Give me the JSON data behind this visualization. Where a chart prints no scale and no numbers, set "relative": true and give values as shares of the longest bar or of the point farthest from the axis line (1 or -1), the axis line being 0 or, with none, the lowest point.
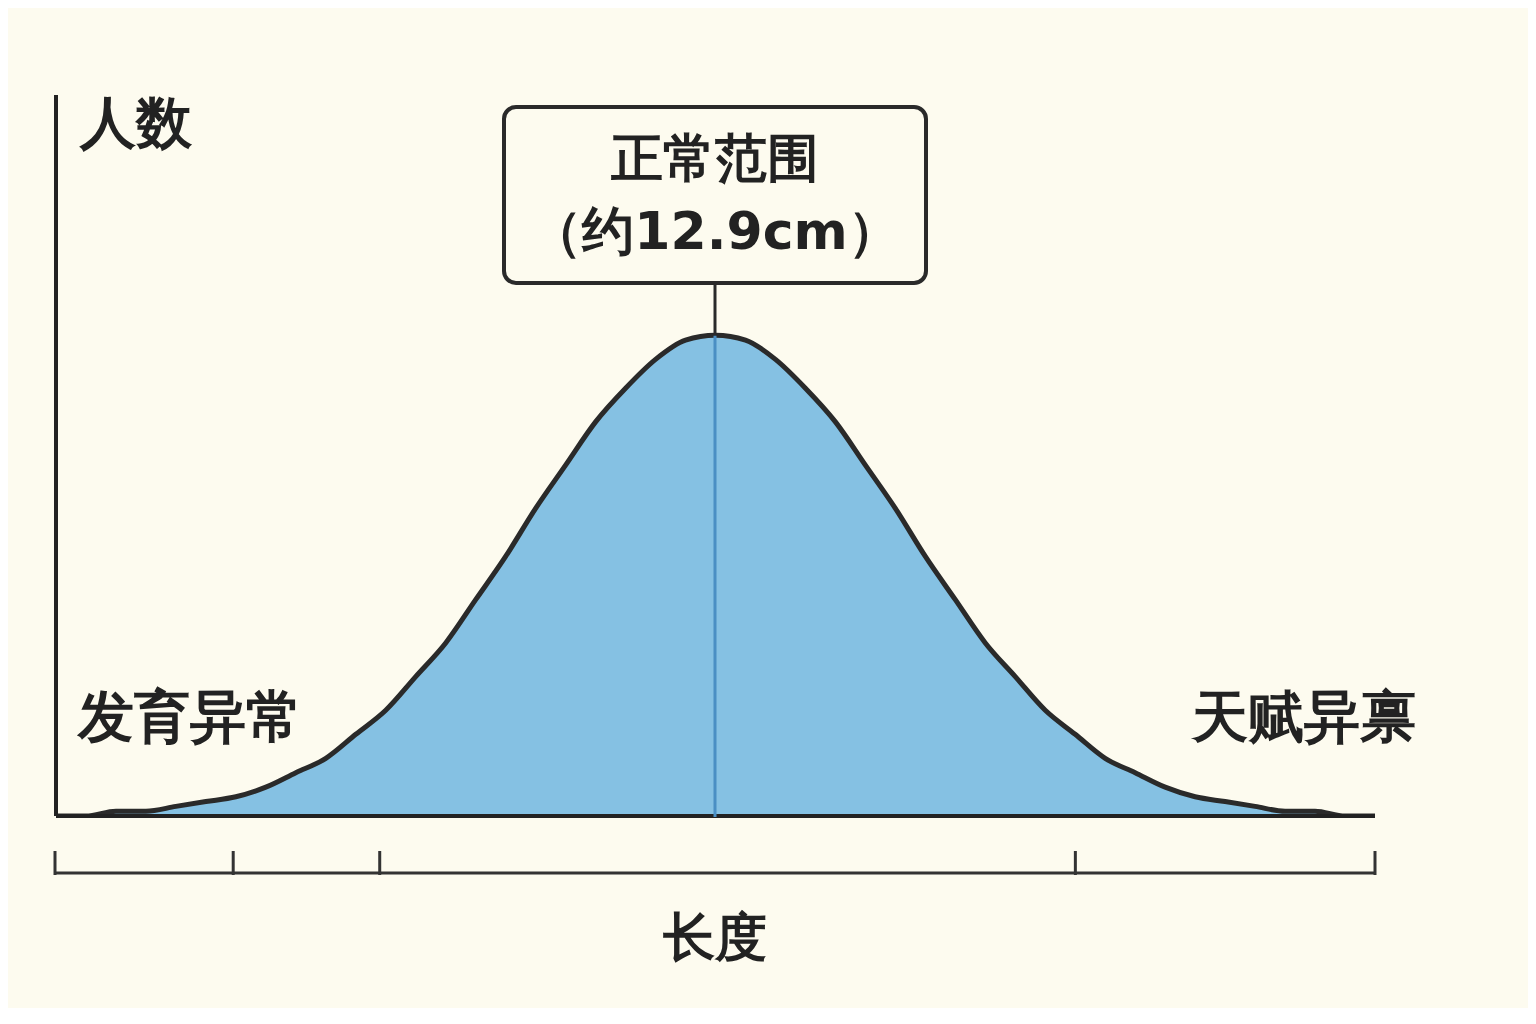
{
  "chart_data": {
    "type": "area",
    "relative": true,
    "xlabel": "长度",
    "ylabel": "人数",
    "categories": [
      null,
      null,
      null,
      null,
      null,
      null,
      null,
      null,
      null,
      null,
      null,
      null,
      null,
      null,
      null,
      null,
      null,
      null,
      null,
      null,
      null,
      null,
      null,
      null,
      null,
      null,
      null,
      null,
      null,
      null,
      null,
      null,
      null,
      null,
      null,
      null,
      null,
      null,
      null,
      null,
      null,
      null,
      null,
      null,
      null
    ],
    "series": [
      {
        "color": "#85c1e3",
        "values": [
          0,
          0,
          0.01,
          0.01,
          0.02,
          0.03,
          0.04,
          0.06,
          0.09,
          0.12,
          0.17,
          0.22,
          0.29,
          0.36,
          0.45,
          0.54,
          0.64,
          0.73,
          0.82,
          0.89,
          0.95,
          0.99,
          1,
          0.99,
          0.95,
          0.89,
          0.82,
          0.73,
          0.64,
          0.54,
          0.45,
          0.36,
          0.29,
          0.22,
          0.17,
          0.12,
          0.09,
          0.06,
          0.04,
          0.03,
          0.02,
          0.01,
          0.01,
          0,
          0
        ]
      }
    ],
    "annotations": [
      "正常范围",
      "（约12.9cm）",
      "发育异常",
      "天赋异禀"
    ],
    "grid": false,
    "legend": false
  }
}
